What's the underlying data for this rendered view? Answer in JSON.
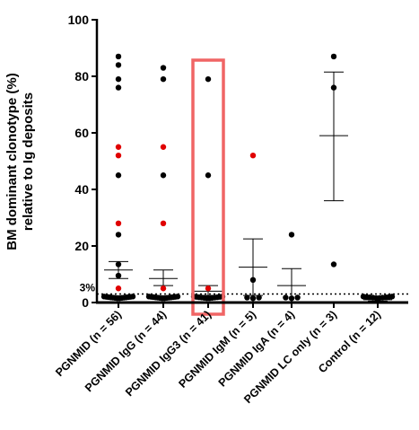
{
  "chart_data": {
    "type": "scatter",
    "ylabel": "BM dominant clonotype (%)",
    "ylabel2": "relative to Ig deposits",
    "ylim": [
      0,
      100
    ],
    "yticks": [
      0,
      20,
      40,
      60,
      80,
      100
    ],
    "threshold": {
      "value": 3,
      "label": "3%"
    },
    "highlight_group": 2,
    "point_colors": {
      "black": "#000000",
      "red": "#e00000",
      "highlight_box": "#f06565"
    },
    "categories": [
      "PGNMID (n = 56)",
      "PGNMID IgG (n = 44)",
      "PGNMID IgG3 (n = 41)",
      "PGNMID IgM (n = 5)",
      "PGNMID IgA (n = 4)",
      "PGNMID LC only (n = 3)",
      "Control (n = 12)"
    ],
    "groups": [
      {
        "mean": 11.5,
        "sem_low": 8.5,
        "sem_high": 14.5,
        "points": [
          {
            "y": 87,
            "c": "black"
          },
          {
            "y": 84,
            "c": "black"
          },
          {
            "y": 79,
            "c": "black"
          },
          {
            "y": 76,
            "c": "black"
          },
          {
            "y": 55,
            "c": "red"
          },
          {
            "y": 52,
            "c": "red"
          },
          {
            "y": 45,
            "c": "black"
          },
          {
            "y": 28,
            "c": "red"
          },
          {
            "y": 24,
            "c": "black"
          },
          {
            "y": 13.5,
            "c": "black"
          },
          {
            "y": 9.5,
            "c": "black"
          },
          {
            "y": 5,
            "c": "red"
          },
          {
            "y": 1.5,
            "c": "black",
            "n": 14
          }
        ]
      },
      {
        "mean": 8.5,
        "sem_low": 6,
        "sem_high": 11.5,
        "points": [
          {
            "y": 83,
            "c": "black"
          },
          {
            "y": 79,
            "c": "black"
          },
          {
            "y": 55,
            "c": "red"
          },
          {
            "y": 45,
            "c": "black"
          },
          {
            "y": 28,
            "c": "red"
          },
          {
            "y": 5,
            "c": "red"
          },
          {
            "y": 1.5,
            "c": "black",
            "n": 14
          }
        ]
      },
      {
        "mean": 4,
        "sem_low": 2.5,
        "sem_high": 6,
        "points": [
          {
            "y": 79,
            "c": "black"
          },
          {
            "y": 45,
            "c": "black"
          },
          {
            "y": 5,
            "c": "red"
          },
          {
            "y": 1.5,
            "c": "black",
            "n": 12
          }
        ]
      },
      {
        "mean": 12.5,
        "sem_low": 2.5,
        "sem_high": 22.5,
        "points": [
          {
            "y": 52,
            "c": "red"
          },
          {
            "y": 8,
            "c": "black"
          },
          {
            "y": 1.5,
            "c": "black",
            "n": 3
          }
        ]
      },
      {
        "mean": 6,
        "sem_low": 0,
        "sem_high": 12,
        "points": [
          {
            "y": 24,
            "c": "black"
          },
          {
            "y": 1.5,
            "c": "black",
            "n": 3
          }
        ]
      },
      {
        "mean": 59,
        "sem_low": 36,
        "sem_high": 81.5,
        "points": [
          {
            "y": 87,
            "c": "black"
          },
          {
            "y": 76,
            "c": "black"
          },
          {
            "y": 13.5,
            "c": "black"
          }
        ]
      },
      {
        "mean": 1,
        "sem_low": 0.5,
        "sem_high": 1.5,
        "points": [
          {
            "y": 1.5,
            "c": "black",
            "n": 10
          }
        ]
      }
    ]
  }
}
